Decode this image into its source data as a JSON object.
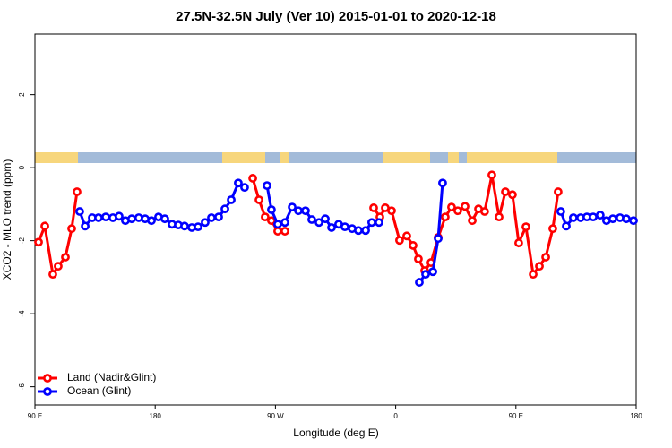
{
  "chart_data": {
    "type": "line",
    "title": "27.5N-32.5N July (Ver 10)   2015-01-01 to 2020-12-18",
    "x_label": "Longitude (deg E)",
    "y_label": "XCO2 - MLO trend (ppm)",
    "xlim": [
      90,
      540
    ],
    "xticks": [
      {
        "value": 90,
        "label": "90 E"
      },
      {
        "value": 180,
        "label": "180"
      },
      {
        "value": 270,
        "label": "90 W"
      },
      {
        "value": 360,
        "label": "0"
      },
      {
        "value": 450,
        "label": "90 E"
      },
      {
        "value": 540,
        "label": "180"
      }
    ],
    "ylim": [
      -6.5,
      3.66
    ],
    "yticks": [
      -6,
      -4,
      -2,
      0,
      2
    ],
    "legend": "bottom-left",
    "series": [
      {
        "name": "Land (Nadir&Glint)",
        "color": "#ff0000",
        "x": [
          92.7,
          97.4,
          103.4,
          107.4,
          112.8,
          117.5,
          121.5,
          null,
          253.0,
          257.7,
          262.3,
          267.0,
          271.7,
          277.1,
          null,
          343.5,
          348.2,
          352.2,
          356.9,
          362.9,
          368.3,
          373.0,
          377.0,
          381.7,
          386.4,
          391.8,
          397.1,
          401.8,
          406.5,
          411.9,
          417.3,
          422.0,
          426.6,
          432.0,
          437.4,
          442.1,
          447.4,
          452.1,
          457.5,
          462.9,
          467.6,
          472.3,
          477.6,
          481.6
        ],
        "values": [
          -2.04,
          -1.6,
          -2.92,
          -2.7,
          -2.45,
          -1.67,
          -0.66,
          null,
          -0.29,
          -0.88,
          -1.35,
          -1.45,
          -1.74,
          -1.74,
          null,
          -1.1,
          -1.35,
          -1.1,
          -1.18,
          -1.99,
          -1.87,
          -2.13,
          -2.5,
          -2.82,
          -2.6,
          -1.91,
          -1.35,
          -1.08,
          -1.18,
          -1.06,
          -1.45,
          -1.13,
          -1.2,
          -0.2,
          -1.35,
          -0.66,
          -0.74,
          -2.06,
          -1.62,
          -2.92,
          -2.7,
          -2.45,
          -1.67,
          -0.66
        ]
      },
      {
        "name": "Ocean (Glint)",
        "color": "#0000ff",
        "x": [
          123.5,
          127.6,
          132.9,
          137.6,
          143.0,
          148.3,
          153.0,
          157.7,
          162.4,
          167.7,
          172.5,
          177.2,
          182.5,
          187.2,
          192.6,
          197.3,
          202.0,
          207.4,
          212.1,
          217.4,
          222.1,
          227.5,
          232.2,
          236.9,
          242.2,
          246.9,
          null,
          263.7,
          267.0,
          271.7,
          277.1,
          282.5,
          287.2,
          292.5,
          297.2,
          302.6,
          307.3,
          312.0,
          317.3,
          322.0,
          327.4,
          332.1,
          337.5,
          342.1,
          347.5,
          null,
          377.7,
          382.4,
          387.8,
          391.8,
          395.1,
          null,
          483.6,
          487.7,
          493.0,
          498.4,
          503.1,
          507.8,
          513.1,
          517.8,
          522.5,
          527.9,
          532.6,
          538.0
        ],
        "values": [
          -1.2,
          -1.6,
          -1.37,
          -1.37,
          -1.35,
          -1.37,
          -1.33,
          -1.45,
          -1.4,
          -1.37,
          -1.4,
          -1.45,
          -1.35,
          -1.4,
          -1.55,
          -1.57,
          -1.6,
          -1.64,
          -1.62,
          -1.5,
          -1.37,
          -1.35,
          -1.13,
          -0.88,
          -0.42,
          -0.54,
          null,
          -0.49,
          -1.15,
          -1.55,
          -1.5,
          -1.08,
          -1.18,
          -1.18,
          -1.42,
          -1.5,
          -1.4,
          -1.64,
          -1.55,
          -1.62,
          -1.67,
          -1.72,
          -1.72,
          -1.5,
          -1.5,
          null,
          -3.14,
          -2.92,
          -2.85,
          -1.94,
          -0.42,
          null,
          -1.2,
          -1.6,
          -1.37,
          -1.37,
          -1.35,
          -1.35,
          -1.3,
          -1.45,
          -1.4,
          -1.37,
          -1.4,
          -1.45
        ]
      }
    ]
  }
}
